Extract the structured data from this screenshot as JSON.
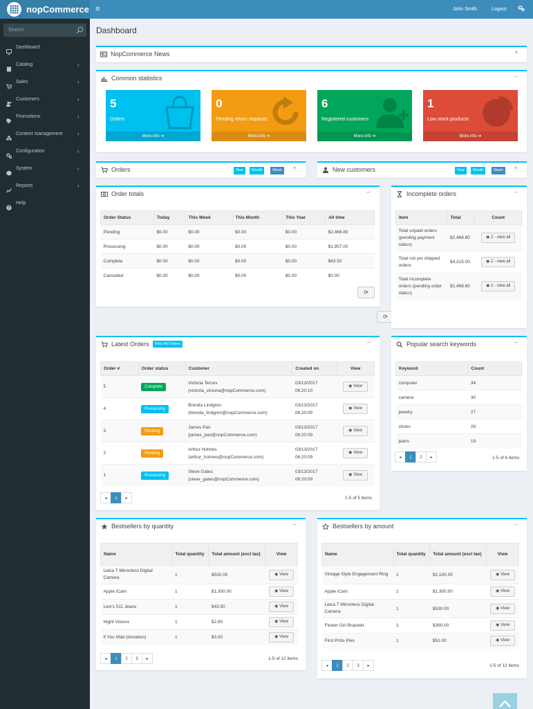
{
  "header": {
    "brand": "nopCommerce",
    "menu_icon": "≡",
    "user_name": "John Smith",
    "logout": "Logout"
  },
  "sidebar": {
    "search_placeholder": "Search",
    "items": [
      {
        "label": "Dashboard",
        "icon": "desktop-icon",
        "chevron": ""
      },
      {
        "label": "Catalog",
        "icon": "book-icon",
        "chevron": "‹"
      },
      {
        "label": "Sales",
        "icon": "cart-icon",
        "chevron": "‹"
      },
      {
        "label": "Customers",
        "icon": "users-icon",
        "chevron": "‹"
      },
      {
        "label": "Promotions",
        "icon": "tag-icon",
        "chevron": "‹"
      },
      {
        "label": "Content management",
        "icon": "cubes-icon",
        "chevron": "‹"
      },
      {
        "label": "Configuration",
        "icon": "gears-icon",
        "chevron": "‹"
      },
      {
        "label": "System",
        "icon": "cube-icon",
        "chevron": "‹"
      },
      {
        "label": "Reports",
        "icon": "line-chart-icon",
        "chevron": "‹"
      },
      {
        "label": "Help",
        "icon": "question-icon",
        "chevron": ""
      }
    ]
  },
  "page_title": "Dashboard",
  "news": {
    "title": "NopCommerce News",
    "tool": "+"
  },
  "stats": {
    "title": "Common statistics",
    "tool": "−",
    "tiles": [
      {
        "number": "5",
        "label": "Orders",
        "more": "More info ➔",
        "color": "#00c0ef",
        "more_color": "#00a7d0"
      },
      {
        "number": "0",
        "label": "Pending return requests",
        "more": "More info ➔",
        "color": "#f39c12",
        "more_color": "#da8c10"
      },
      {
        "number": "6",
        "label": "Registered customers",
        "more": "More info ➔",
        "color": "#00a65a",
        "more_color": "#009551"
      },
      {
        "number": "1",
        "label": "Low stock products",
        "more": "More info ➔",
        "color": "#dd4b39",
        "more_color": "#c64333"
      }
    ]
  },
  "orders_box": {
    "title": "Orders",
    "tags": [
      "Year",
      "Month",
      "Week"
    ],
    "tool": "+"
  },
  "new_customers_box": {
    "title": "New customers",
    "tags": [
      "Year",
      "Month",
      "Week"
    ],
    "tool": "+"
  },
  "order_totals": {
    "title": "Order totals",
    "tool": "−",
    "headers": [
      "Order Status",
      "Today",
      "This Week",
      "This Month",
      "This Year",
      "All time"
    ],
    "rows": [
      [
        "Pending",
        "$0.00",
        "$0.00",
        "$0.00",
        "$0.00",
        "$2,468.80"
      ],
      [
        "Processing",
        "$0.00",
        "$0.00",
        "$0.00",
        "$0.00",
        "$1,957.00"
      ],
      [
        "Complete",
        "$0.00",
        "$0.00",
        "$0.00",
        "$0.00",
        "$43.50"
      ],
      [
        "Cancelled",
        "$0.00",
        "$0.00",
        "$0.00",
        "$0.00",
        "$0.00"
      ]
    ]
  },
  "incomplete_orders": {
    "title": "Incomplete orders",
    "tool": "−",
    "headers": [
      "Item",
      "Total",
      "Count"
    ],
    "rows": [
      {
        "item": "Total unpaid orders (pending payment status)",
        "total": "$2,468.80",
        "count": "2 - view all"
      },
      {
        "item": "Total not yet shipped orders",
        "total": "$4,315.00",
        "count": "2 - view all"
      },
      {
        "item": "Total incomplete orders (pending order status)",
        "total": "$2,468.80",
        "count": "2 - view all"
      }
    ]
  },
  "latest_orders": {
    "title": "Latest Orders",
    "view_all": "View All Orders",
    "tool": "−",
    "headers": [
      "Order #",
      "Order status",
      "Customer",
      "Created on",
      "View"
    ],
    "rows": [
      {
        "num": "5",
        "status": "Complete",
        "status_color": "#00a65a",
        "name": "Victoria Terces",
        "email": "(victoria_victoria@nopCommerce.com)",
        "date": "03/13/2017",
        "time": "06:20:10",
        "view": "View"
      },
      {
        "num": "4",
        "status": "Processing",
        "status_color": "#00c0ef",
        "name": "Brenda Lindgren",
        "email": "(brenda_lindgren@nopCommerce.com)",
        "date": "03/13/2017",
        "time": "06:20:09",
        "view": "View"
      },
      {
        "num": "3",
        "status": "Pending",
        "status_color": "#f39c12",
        "name": "James Pan",
        "email": "(james_pan@nopCommerce.com)",
        "date": "03/13/2017",
        "time": "06:20:09",
        "view": "View"
      },
      {
        "num": "2",
        "status": "Pending",
        "status_color": "#f39c12",
        "name": "Arthur Holmes",
        "email": "(arthur_holmes@nopCommerce.com)",
        "date": "03/13/2017",
        "time": "06:20:09",
        "view": "View"
      },
      {
        "num": "1",
        "status": "Processing",
        "status_color": "#00c0ef",
        "name": "Steve Gates",
        "email": "(steve_gates@nopCommerce.com)",
        "date": "03/13/2017",
        "time": "06:20:09",
        "view": "View"
      }
    ],
    "pages": [
      "◂",
      "1",
      "▸"
    ],
    "info": "1-5 of 5 items"
  },
  "search_keywords": {
    "title": "Popular search keywords",
    "tool": "−",
    "headers": [
      "Keyword",
      "Count"
    ],
    "rows": [
      [
        "computer",
        "34"
      ],
      [
        "camera",
        "30"
      ],
      [
        "jewelry",
        "27"
      ],
      [
        "shoes",
        "26"
      ],
      [
        "jeans",
        "19"
      ]
    ],
    "pages": [
      "◂",
      "1",
      "2",
      "▸"
    ],
    "info": "1-5 of 6 items"
  },
  "bestsellers_qty": {
    "title": "Bestsellers by quantity",
    "tool": "−",
    "headers": [
      "Name",
      "Total quantity",
      "Total amount (excl tax)",
      "View"
    ],
    "rows": [
      [
        "Leica T Mirrorless Digital Camera",
        "1",
        "$530.00",
        "View"
      ],
      [
        "Apple iCam",
        "1",
        "$1,300.00",
        "View"
      ],
      [
        "Levi's 511 Jeans",
        "1",
        "$43.50",
        "View"
      ],
      [
        "Night Visions",
        "1",
        "$2.80",
        "View"
      ],
      [
        "If You Wait (donation)",
        "1",
        "$3.00",
        "View"
      ]
    ],
    "pages": [
      "◂",
      "1",
      "2",
      "3",
      "▸"
    ],
    "info": "1-5 of 12 items"
  },
  "bestsellers_amount": {
    "title": "Bestsellers by amount",
    "tool": "−",
    "headers": [
      "Name",
      "Total quantity",
      "Total amount (excl tax)",
      "View"
    ],
    "rows": [
      [
        "Vintage Style Engagement Ring",
        "1",
        "$2,100.00",
        "View"
      ],
      [
        "Apple iCam",
        "1",
        "$1,300.00",
        "View"
      ],
      [
        "Leica T Mirrorless Digital Camera",
        "1",
        "$530.00",
        "View"
      ],
      [
        "Flower Girl Bracelet",
        "1",
        "$360.00",
        "View"
      ],
      [
        "First Prize Pies",
        "1",
        "$51.00",
        "View"
      ]
    ],
    "pages": [
      "◂",
      "1",
      "2",
      "3",
      "▸"
    ],
    "info": "1-5 of 12 items"
  }
}
